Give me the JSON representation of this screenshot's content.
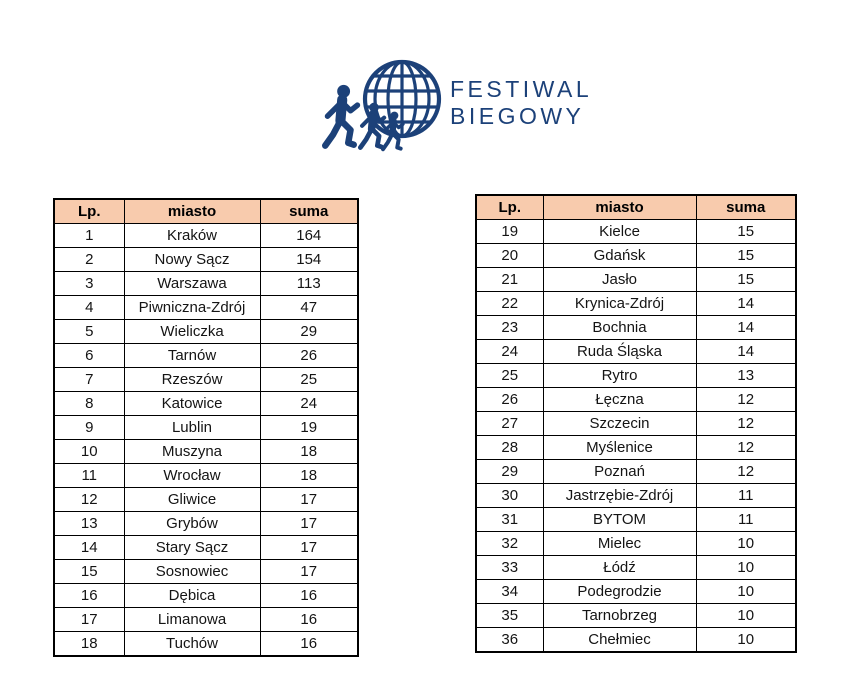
{
  "logo": {
    "line1": "FESTIWAL",
    "line2": "BIEGOWY",
    "color": "#1c4179",
    "icon": "runners-globe-icon"
  },
  "colors": {
    "table_header_bg": "#F8CBAD",
    "table_border": "#000000",
    "page_bg": "#ffffff",
    "brand_navy": "#1c4179"
  },
  "tables": [
    {
      "name": "ranking-left",
      "headers": [
        "Lp.",
        "miasto",
        "suma"
      ],
      "rows": [
        [
          "1",
          "Kraków",
          "164"
        ],
        [
          "2",
          "Nowy Sącz",
          "154"
        ],
        [
          "3",
          "Warszawa",
          "113"
        ],
        [
          "4",
          "Piwniczna-Zdrój",
          "47"
        ],
        [
          "5",
          "Wieliczka",
          "29"
        ],
        [
          "6",
          "Tarnów",
          "26"
        ],
        [
          "7",
          "Rzeszów",
          "25"
        ],
        [
          "8",
          "Katowice",
          "24"
        ],
        [
          "9",
          "Lublin",
          "19"
        ],
        [
          "10",
          "Muszyna",
          "18"
        ],
        [
          "11",
          "Wrocław",
          "18"
        ],
        [
          "12",
          "Gliwice",
          "17"
        ],
        [
          "13",
          "Grybów",
          "17"
        ],
        [
          "14",
          "Stary Sącz",
          "17"
        ],
        [
          "15",
          "Sosnowiec",
          "17"
        ],
        [
          "16",
          "Dębica",
          "16"
        ],
        [
          "17",
          "Limanowa",
          "16"
        ],
        [
          "18",
          "Tuchów",
          "16"
        ]
      ]
    },
    {
      "name": "ranking-right",
      "headers": [
        "Lp.",
        "miasto",
        "suma"
      ],
      "rows": [
        [
          "19",
          "Kielce",
          "15"
        ],
        [
          "20",
          "Gdańsk",
          "15"
        ],
        [
          "21",
          "Jasło",
          "15"
        ],
        [
          "22",
          "Krynica-Zdrój",
          "14"
        ],
        [
          "23",
          "Bochnia",
          "14"
        ],
        [
          "24",
          "Ruda Śląska",
          "14"
        ],
        [
          "25",
          "Rytro",
          "13"
        ],
        [
          "26",
          "Łęczna",
          "12"
        ],
        [
          "27",
          "Szczecin",
          "12"
        ],
        [
          "28",
          "Myślenice",
          "12"
        ],
        [
          "29",
          "Poznań",
          "12"
        ],
        [
          "30",
          "Jastrzębie-Zdrój",
          "11"
        ],
        [
          "31",
          "BYTOM",
          "11"
        ],
        [
          "32",
          "Mielec",
          "10"
        ],
        [
          "33",
          "Łódź",
          "10"
        ],
        [
          "34",
          "Podegrodzie",
          "10"
        ],
        [
          "35",
          "Tarnobrzeg",
          "10"
        ],
        [
          "36",
          "Chełmiec",
          "10"
        ]
      ]
    }
  ]
}
